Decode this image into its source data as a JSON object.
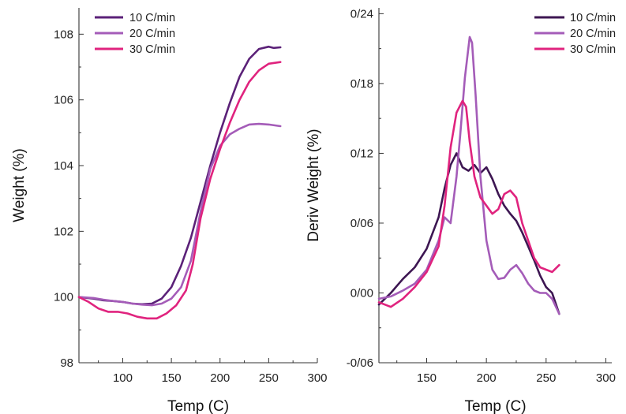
{
  "chart_data": [
    {
      "type": "line",
      "xlabel": "Temp (C)",
      "ylabel": "Weight (%)",
      "xlim": [
        55,
        300
      ],
      "ylim": [
        98,
        108.8
      ],
      "xticks": [
        100,
        150,
        200,
        250,
        300
      ],
      "yticks": [
        98,
        100,
        102,
        104,
        106,
        108
      ],
      "xtick_labels": [
        "100",
        "150",
        "200",
        "250",
        "300"
      ],
      "ytick_labels": [
        "98",
        "100",
        "102",
        "104",
        "106",
        "108"
      ],
      "legend_position": "top-left",
      "series": [
        {
          "name": "10 C/min",
          "color": "#5b2178",
          "x": [
            55,
            70,
            80,
            90,
            100,
            110,
            120,
            130,
            140,
            150,
            160,
            170,
            180,
            190,
            200,
            210,
            220,
            230,
            240,
            250,
            255,
            262
          ],
          "y": [
            100.0,
            99.95,
            99.9,
            99.88,
            99.85,
            99.8,
            99.78,
            99.8,
            99.95,
            100.3,
            100.95,
            101.8,
            102.9,
            104.0,
            105.0,
            105.9,
            106.7,
            107.25,
            107.55,
            107.62,
            107.58,
            107.6
          ]
        },
        {
          "name": "20 C/min",
          "color": "#a45cb8",
          "x": [
            55,
            70,
            80,
            90,
            100,
            110,
            120,
            130,
            140,
            150,
            160,
            170,
            180,
            190,
            200,
            210,
            220,
            230,
            240,
            250,
            262
          ],
          "y": [
            100.0,
            99.97,
            99.92,
            99.88,
            99.85,
            99.8,
            99.77,
            99.75,
            99.8,
            99.95,
            100.3,
            101.1,
            102.6,
            103.9,
            104.6,
            104.95,
            105.12,
            105.25,
            105.27,
            105.25,
            105.2
          ]
        },
        {
          "name": "30 C/min",
          "color": "#e0237e",
          "x": [
            55,
            65,
            75,
            85,
            95,
            105,
            115,
            125,
            135,
            145,
            155,
            165,
            172,
            180,
            190,
            200,
            210,
            220,
            230,
            240,
            250,
            262
          ],
          "y": [
            100.0,
            99.85,
            99.65,
            99.55,
            99.55,
            99.5,
            99.4,
            99.35,
            99.35,
            99.5,
            99.75,
            100.2,
            101.0,
            102.4,
            103.6,
            104.5,
            105.3,
            106.0,
            106.55,
            106.9,
            107.1,
            107.15
          ]
        }
      ]
    },
    {
      "type": "line",
      "xlabel": "Temp (C)",
      "ylabel": "Deriv Weight (%)",
      "xlim": [
        110,
        305
      ],
      "ylim": [
        -0.06,
        0.245
      ],
      "xticks": [
        150,
        200,
        250,
        300
      ],
      "yticks": [
        -0.06,
        0.0,
        0.06,
        0.12,
        0.18,
        0.24
      ],
      "xtick_labels": [
        "150",
        "200",
        "250",
        "300"
      ],
      "ytick_labels": [
        "-0/06",
        "0/00",
        "0/06",
        "0/12",
        "0/18",
        "0/24"
      ],
      "legend_position": "top-right",
      "series": [
        {
          "name": "10 C/min",
          "color": "#3d1652",
          "x": [
            110,
            120,
            130,
            140,
            150,
            160,
            165,
            170,
            175,
            180,
            185,
            190,
            195,
            200,
            205,
            210,
            215,
            220,
            225,
            230,
            235,
            240,
            245,
            250,
            255,
            261
          ],
          "y": [
            -0.01,
            0.0,
            0.012,
            0.022,
            0.038,
            0.065,
            0.09,
            0.11,
            0.12,
            0.108,
            0.105,
            0.11,
            0.103,
            0.108,
            0.098,
            0.085,
            0.075,
            0.068,
            0.062,
            0.052,
            0.04,
            0.028,
            0.015,
            0.005,
            0.0,
            -0.018
          ]
        },
        {
          "name": "20 C/min",
          "color": "#a45cb8",
          "x": [
            110,
            120,
            130,
            140,
            150,
            160,
            165,
            170,
            175,
            178,
            182,
            186,
            188,
            191,
            195,
            200,
            205,
            210,
            215,
            220,
            225,
            230,
            235,
            240,
            245,
            250,
            255,
            261
          ],
          "y": [
            -0.005,
            -0.003,
            0.002,
            0.008,
            0.02,
            0.045,
            0.065,
            0.06,
            0.1,
            0.135,
            0.185,
            0.22,
            0.215,
            0.17,
            0.1,
            0.045,
            0.02,
            0.012,
            0.013,
            0.02,
            0.024,
            0.017,
            0.008,
            0.002,
            0.0,
            0.0,
            -0.005,
            -0.018
          ]
        },
        {
          "name": "30 C/min",
          "color": "#e0237e",
          "x": [
            110,
            120,
            130,
            140,
            150,
            160,
            165,
            170,
            175,
            180,
            183,
            186,
            190,
            195,
            200,
            205,
            210,
            215,
            220,
            225,
            230,
            235,
            240,
            245,
            250,
            255,
            261
          ],
          "y": [
            -0.008,
            -0.012,
            -0.005,
            0.005,
            0.018,
            0.04,
            0.075,
            0.125,
            0.155,
            0.165,
            0.16,
            0.13,
            0.1,
            0.082,
            0.075,
            0.068,
            0.072,
            0.085,
            0.088,
            0.082,
            0.06,
            0.045,
            0.03,
            0.022,
            0.02,
            0.018,
            0.024
          ]
        }
      ]
    }
  ]
}
